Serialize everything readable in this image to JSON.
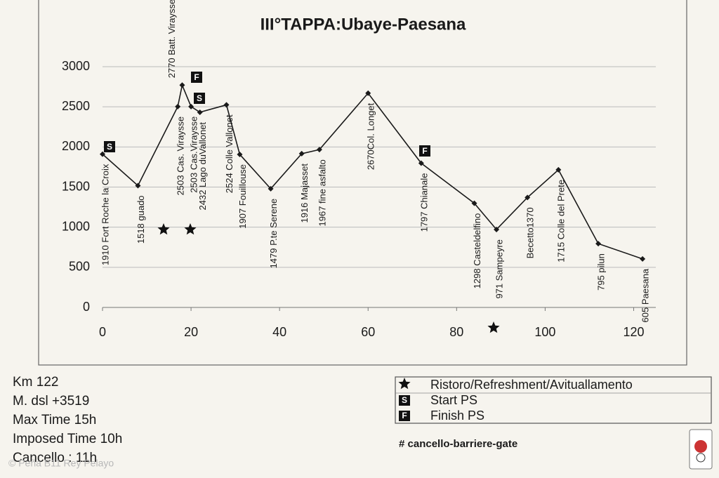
{
  "chart_data": {
    "type": "line",
    "title": "III°TAPPA:Ubaye-Paesana",
    "x": [
      0,
      8,
      17,
      18,
      20,
      22,
      28,
      31,
      38,
      45,
      49,
      60,
      72,
      84,
      89,
      96,
      103,
      112,
      122
    ],
    "values": [
      1910,
      1518,
      2503,
      2770,
      2503,
      2432,
      2524,
      1907,
      1479,
      1916,
      1967,
      2670,
      1797,
      1298,
      971,
      1370,
      1715,
      795,
      605
    ],
    "point_labels": [
      "1910 Fort Roche la Croix",
      "1518 guado",
      "2503 Cas. Viraysse",
      "2770 Batt. Viraysse",
      "2503 Cas.Viraysse",
      "2432 Lago duVallonet",
      "2524 Colle Vallonet",
      "1907 Fouillouse",
      "1479 P.te Serene",
      "1916 Majasset",
      "1967 fine asfalto",
      "2670Col. Longet",
      "1797 Chianale",
      "1298 Casteldelfino",
      "971 Sampeyre",
      "Becetto1370",
      "1715 Colle del Prete",
      "795 pilun",
      "605 Paesana"
    ],
    "color": "#1a1a1a",
    "xlim": [
      0,
      125
    ],
    "xticks": [
      0,
      20,
      40,
      60,
      80,
      100,
      120
    ],
    "ylim": [
      0,
      3000
    ],
    "yticks": [
      0,
      500,
      1000,
      1500,
      2000,
      2500,
      3000
    ],
    "grid": true,
    "legend": [
      {
        "label": "Ristoro/Refreshment/Avituallamento"
      },
      {
        "symbol": "S",
        "label": "Start PS"
      },
      {
        "symbol": "F",
        "label": "Finish PS"
      }
    ],
    "notes": [
      "Km 122",
      "M. dsl +3519",
      "Max Time 15h",
      "Imposed Time 10h",
      "Cancello : 11h"
    ],
    "footnote": "# cancello-barriere-gate",
    "watermark": "© Peña B11 Rey Pelayo"
  }
}
